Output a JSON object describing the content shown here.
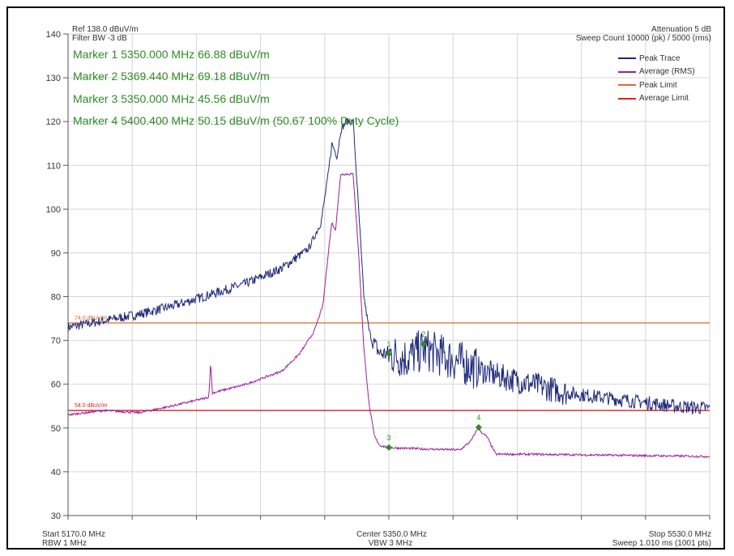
{
  "header": {
    "ref_level": "Ref 138.0 dBuV/m",
    "filter_bw": "Filter BW -3 dB",
    "attenuation": "Attenuation 5 dB",
    "sweep_count": "Sweep Count 10000 (pk) / 5000 (rms)"
  },
  "footer": {
    "start": "Start 5170.0 MHz",
    "rbw": "RBW 1 MHz",
    "center": "Center 5350.0 MHz",
    "vbw": "VBW 3 MHz",
    "stop": "Stop 5530.0 MHz",
    "sweep": "Sweep 1.010 ms (1001 pts)"
  },
  "markers": [
    "Marker 1 5350.000 MHz 66.88 dBuV/m",
    "Marker 2 5369.440 MHz 69.18 dBuV/m",
    "Marker 3 5350.000 MHz 45.56 dBuV/m",
    "Marker 4 5400.400 MHz 50.15 dBuV/m (50.67 100% Duty Cycle)"
  ],
  "legend": [
    "Peak Trace",
    "Average (RMS)",
    "Peak Limit",
    "Average Limit"
  ],
  "colors": {
    "peak_trace": "#1f2a7a",
    "average": "#9c1f9c",
    "peak_limit": "#e0682a",
    "average_limit": "#e02020",
    "marker": "#2c8c24",
    "grid": "#d6d6d6"
  },
  "chart_data": {
    "type": "line",
    "xlim": [
      5170.0,
      5530.0
    ],
    "ylim": [
      30,
      140
    ],
    "yticks": [
      30,
      40,
      50,
      60,
      70,
      80,
      90,
      100,
      110,
      120,
      130,
      140
    ],
    "grid": true,
    "legend_position": "top-right",
    "limits": [
      {
        "name": "Peak Limit",
        "value": 74.0,
        "label": "74.0 dBuV/m"
      },
      {
        "name": "Average Limit",
        "value": 54.0,
        "label": "54.0 dBuV/m"
      }
    ],
    "series": [
      {
        "name": "Peak Trace",
        "x": [
          5170,
          5190,
          5210,
          5230,
          5250,
          5270,
          5290,
          5305,
          5312,
          5316,
          5318,
          5321,
          5323,
          5326,
          5330,
          5333,
          5336,
          5339,
          5342,
          5345,
          5350,
          5360,
          5370,
          5390,
          5410,
          5430,
          5450,
          5470,
          5490,
          5510,
          5530
        ],
        "y": [
          73,
          74.5,
          76,
          78,
          80.5,
          83,
          86.5,
          91,
          97,
          108,
          115,
          112,
          118,
          120,
          120,
          100,
          80,
          72,
          69,
          67,
          66.9,
          66,
          68,
          65,
          62,
          60,
          58,
          57,
          56,
          55,
          54.5
        ]
      },
      {
        "name": "Average (RMS)",
        "x": [
          5170,
          5190,
          5210,
          5228,
          5249,
          5250,
          5251,
          5270,
          5290,
          5300,
          5308,
          5313,
          5316,
          5318,
          5320,
          5323,
          5326,
          5330,
          5333,
          5336,
          5339,
          5342,
          5345,
          5350,
          5370,
          5390,
          5396,
          5400,
          5402,
          5405,
          5410,
          5430,
          5470,
          5530
        ],
        "y": [
          53,
          54,
          53.5,
          55,
          57,
          65,
          58,
          60,
          63,
          67,
          72,
          78,
          90,
          97,
          95,
          108,
          108,
          108,
          90,
          68,
          55,
          48,
          46,
          45.5,
          45.2,
          45,
          47,
          50,
          49,
          48,
          44,
          44,
          43.8,
          43.5
        ]
      }
    ],
    "markers": [
      {
        "id": "1",
        "x": 5350.0,
        "y": 66.88
      },
      {
        "id": "2",
        "x": 5369.44,
        "y": 69.18
      },
      {
        "id": "3",
        "x": 5350.0,
        "y": 45.56
      },
      {
        "id": "4",
        "x": 5400.4,
        "y": 50.15
      }
    ]
  }
}
